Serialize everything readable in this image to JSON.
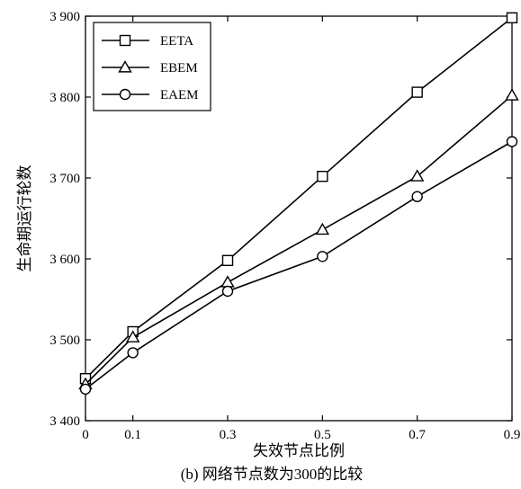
{
  "chart_data": {
    "type": "line",
    "title": "",
    "caption": "(b) 网络节点数为300的比较",
    "xlabel": "失效节点比例",
    "ylabel": "生命期运行轮数",
    "x": [
      0,
      0.1,
      0.3,
      0.5,
      0.7,
      0.9
    ],
    "xticks": [
      "0",
      "0.1",
      "0.3",
      "0.5",
      "0.7",
      "0.9"
    ],
    "xlim": [
      0,
      0.9
    ],
    "ylim": [
      3400,
      3900
    ],
    "yticks": [
      3400,
      3500,
      3600,
      3700,
      3800,
      3900
    ],
    "ytick_labels": [
      "3 400",
      "3 500",
      "3 600",
      "3 700",
      "3 800",
      "3 900"
    ],
    "grid": false,
    "legend_position": "top-left",
    "series": [
      {
        "name": "EETA",
        "marker": "square",
        "values": [
          3452,
          3510,
          3598,
          3702,
          3806,
          3898
        ]
      },
      {
        "name": "EBEM",
        "marker": "triangle",
        "values": [
          3445,
          3503,
          3571,
          3636,
          3702,
          3802
        ]
      },
      {
        "name": "EAEM",
        "marker": "circle",
        "values": [
          3439,
          3484,
          3560,
          3603,
          3677,
          3745
        ]
      }
    ]
  }
}
